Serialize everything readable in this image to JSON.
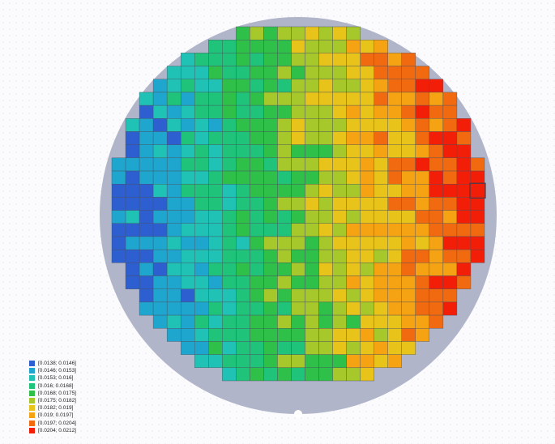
{
  "chart_data": {
    "type": "heatmap",
    "title": "",
    "grid": true,
    "legend_position": "bottom-left",
    "value_range": [
      0.0138,
      0.0212
    ],
    "bins": [
      {
        "label": "[0.0138; 0.0146]",
        "color": "#2d5fd0"
      },
      {
        "label": "[0.0146; 0.0153]",
        "color": "#1fa6cf"
      },
      {
        "label": "[0.0153; 0.016]",
        "color": "#1fc2b4"
      },
      {
        "label": "[0.016; 0.0168]",
        "color": "#1fc47a"
      },
      {
        "label": "[0.0168; 0.0175]",
        "color": "#2fc04a"
      },
      {
        "label": "[0.0175; 0.0182]",
        "color": "#a6c82a"
      },
      {
        "label": "[0.0182; 0.019]",
        "color": "#e8c41a"
      },
      {
        "label": "[0.019; 0.0197]",
        "color": "#f5a312"
      },
      {
        "label": "[0.0197; 0.0204]",
        "color": "#f26a10"
      },
      {
        "label": "[0.0204; 0.0212]",
        "color": "#f21e08"
      }
    ],
    "description_of_field": "value increases roughly linearly from left (0.0138) to right (0.0212) across a circular wafer die map",
    "columns": 27,
    "rows": 27,
    "wafer_notch": "bottom",
    "highlighted_die": {
      "col": 26,
      "row": 12
    }
  }
}
